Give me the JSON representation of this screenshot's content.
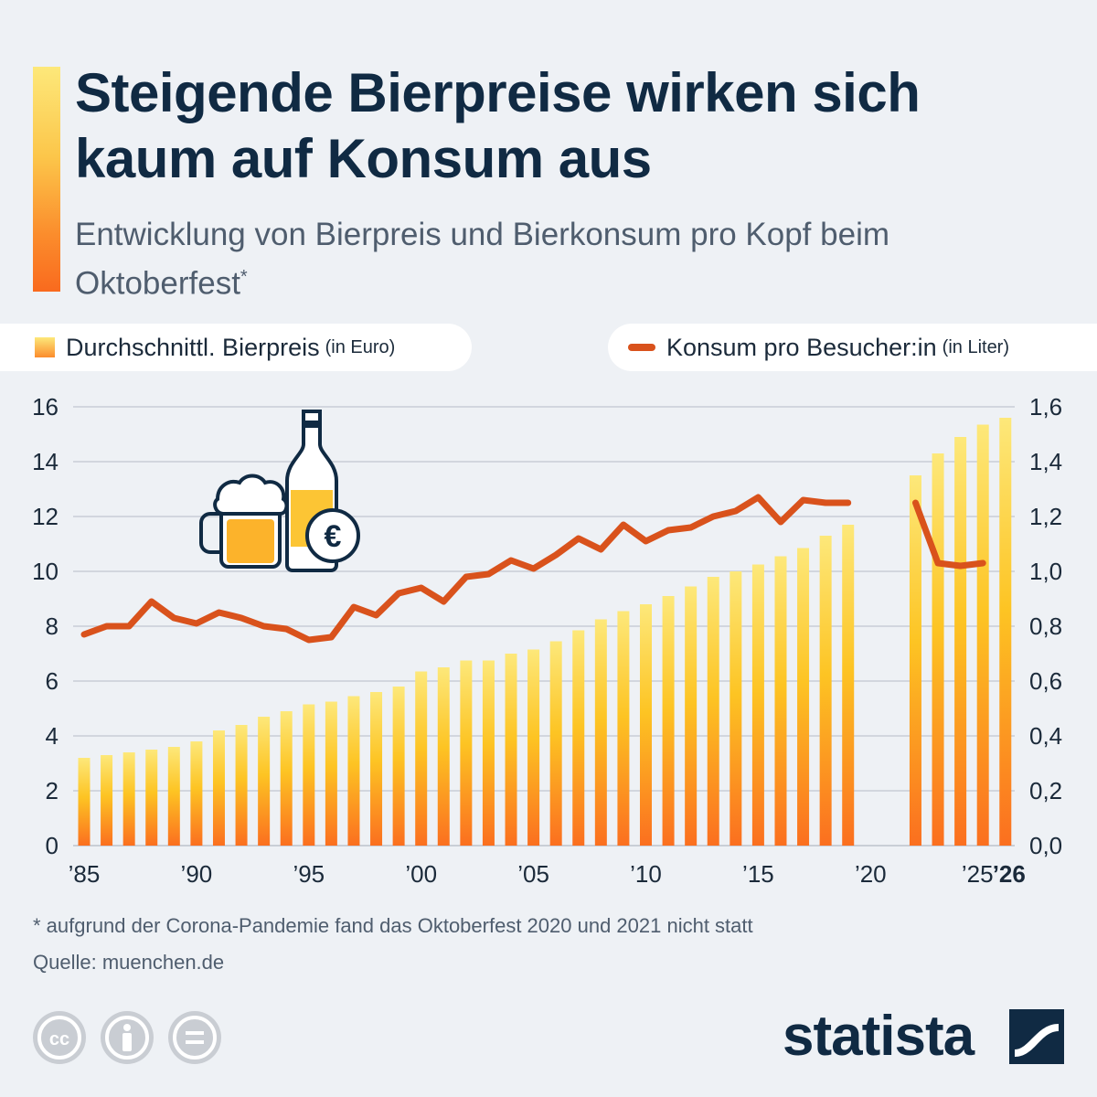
{
  "header": {
    "title": "Steigende Bierpreise wirken sich kaum auf Konsum aus",
    "subtitle": "Entwicklung von Bierpreis und Bierkonsum pro Kopf beim Oktoberfest",
    "subtitle_mark": "*"
  },
  "legend": {
    "bar_label": "Durchschnittl. Bierpreis",
    "bar_unit": "(in Euro)",
    "line_label": "Konsum pro Besucher:in",
    "line_unit": "(in Liter)"
  },
  "colors": {
    "bar_top": "#fde87a",
    "bar_bottom": "#fb6f1f",
    "line": "#d9521c",
    "title": "#102a43",
    "text": "#4f5d6e",
    "grid": "#c9ced6",
    "background": "#eef1f5"
  },
  "chart_data": {
    "type": "bar",
    "title": "Steigende Bierpreise wirken sich kaum auf Konsum aus",
    "subtitle": "Entwicklung von Bierpreis und Bierkonsum pro Kopf beim Oktoberfest",
    "x": [
      1985,
      1986,
      1987,
      1988,
      1989,
      1990,
      1991,
      1992,
      1993,
      1994,
      1995,
      1996,
      1997,
      1998,
      1999,
      2000,
      2001,
      2002,
      2003,
      2004,
      2005,
      2006,
      2007,
      2008,
      2009,
      2010,
      2011,
      2012,
      2013,
      2014,
      2015,
      2016,
      2017,
      2018,
      2019,
      2020,
      2021,
      2022,
      2023,
      2024,
      2025,
      2026
    ],
    "x_tick_values": [
      1985,
      1990,
      1995,
      2000,
      2005,
      2010,
      2015,
      2020,
      2025,
      2026
    ],
    "x_tick_labels": [
      "’85",
      "’90",
      "’95",
      "’00",
      "’05",
      "’10",
      "’15",
      "’20",
      "’25",
      "’26"
    ],
    "xlim": [
      1985,
      2026
    ],
    "series": [
      {
        "name": "Durchschnittl. Bierpreis (in Euro)",
        "type": "bar",
        "axis": "left",
        "values": [
          3.2,
          3.3,
          3.4,
          3.5,
          3.6,
          3.8,
          4.2,
          4.4,
          4.7,
          4.9,
          5.15,
          5.25,
          5.45,
          5.6,
          5.8,
          6.35,
          6.5,
          6.75,
          6.75,
          7.0,
          7.15,
          7.45,
          7.85,
          8.25,
          8.55,
          8.8,
          9.1,
          9.45,
          9.8,
          10.0,
          10.25,
          10.55,
          10.85,
          11.3,
          11.7,
          null,
          null,
          13.5,
          14.3,
          14.9,
          15.35,
          15.6
        ]
      },
      {
        "name": "Konsum pro Besucher:in (in Liter)",
        "type": "line",
        "axis": "right",
        "values": [
          0.77,
          0.8,
          0.8,
          0.89,
          0.83,
          0.81,
          0.85,
          0.83,
          0.8,
          0.79,
          0.75,
          0.76,
          0.87,
          0.84,
          0.92,
          0.94,
          0.89,
          0.98,
          0.99,
          1.04,
          1.01,
          1.06,
          1.12,
          1.08,
          1.17,
          1.11,
          1.15,
          1.16,
          1.2,
          1.22,
          1.27,
          1.18,
          1.26,
          1.25,
          1.25,
          null,
          null,
          1.25,
          1.03,
          1.02,
          1.03,
          null
        ]
      }
    ],
    "y_left": {
      "ylim": [
        0,
        16
      ],
      "ticks": [
        "0",
        "2",
        "4",
        "6",
        "8",
        "10",
        "12",
        "14",
        "16"
      ]
    },
    "y_right": {
      "ylim": [
        0,
        1.6
      ],
      "ticks": [
        "0,0",
        "0,2",
        "0,4",
        "0,6",
        "0,8",
        "1,0",
        "1,2",
        "1,4",
        "1,6"
      ]
    },
    "grid": true,
    "legend_position": "top"
  },
  "footer": {
    "footnote": "* aufgrund der Corona-Pandemie fand das Oktoberfest 2020 und 2021 nicht statt",
    "source": "Quelle: muenchen.de",
    "brand": "statista"
  }
}
